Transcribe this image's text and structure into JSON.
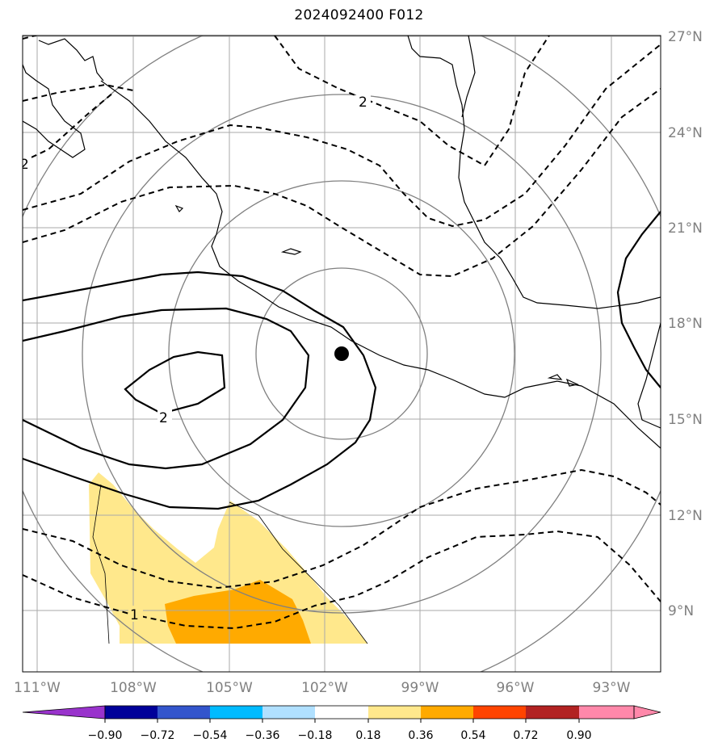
{
  "title": "2024092400 F012",
  "map": {
    "lon_labels": [
      "111°W",
      "108°W",
      "105°W",
      "102°W",
      "99°W",
      "96°W",
      "93°W"
    ],
    "lat_labels": [
      "27°N",
      "24°N",
      "21°N",
      "18°N",
      "15°N",
      "12°N",
      "9°N"
    ],
    "contour_labels": [
      "2",
      "2",
      "2",
      "1"
    ],
    "storm_center": {
      "lon": -101.5,
      "lat": 17.0
    },
    "range_rings": "gray concentric circles around storm center"
  },
  "colorbar": {
    "ticks": [
      "−0.90",
      "−0.72",
      "−0.54",
      "−0.36",
      "−0.18",
      "0.18",
      "0.36",
      "0.54",
      "0.72",
      "0.90"
    ],
    "colors": [
      "#9933cc",
      "#000099",
      "#3355cc",
      "#00bbff",
      "#b0e0ff",
      "#ffffff",
      "#ffe88c",
      "#ffaa00",
      "#ff4400",
      "#b22222",
      "#ff88aa"
    ]
  },
  "colors": {
    "grid": "#aaaaaa",
    "rings": "#808080",
    "shade_low": "#ffe88c",
    "shade_high": "#ffaa00"
  }
}
